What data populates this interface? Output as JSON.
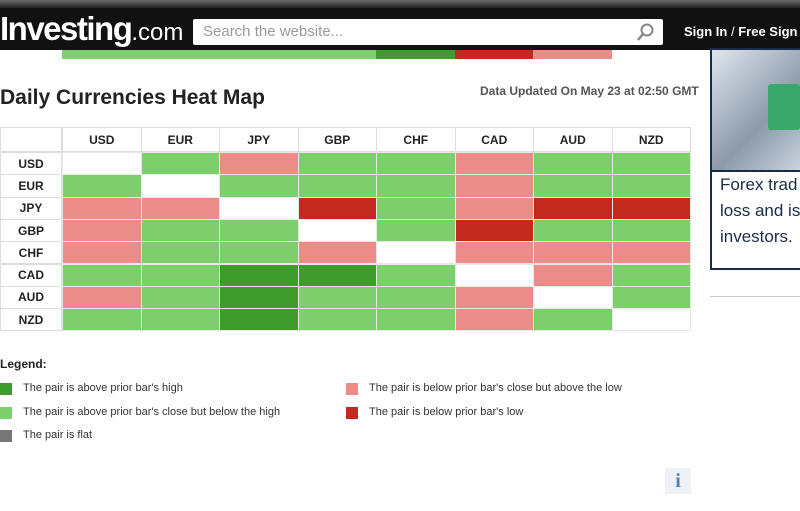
{
  "header": {
    "logo": "Investing",
    "logo_suffix": ".com",
    "search_placeholder": "Search the website...",
    "sign_in": "Sign In",
    "separator": "/",
    "free_sign": "Free Sign"
  },
  "title": "Daily Currencies Heat Map",
  "updated": "Data Updated On May 23 at 02:50 GMT",
  "heatmap": {
    "columns": [
      "USD",
      "EUR",
      "JPY",
      "GBP",
      "CHF",
      "CAD",
      "AUD",
      "NZD"
    ],
    "rows": [
      {
        "label": "USD",
        "cells": [
          null,
          "#7dce6d",
          "#ec8c88",
          "#7dce6d",
          "#7dce6d",
          "#ec8c88",
          "#7dce6d",
          "#7dce6d"
        ]
      },
      {
        "label": "EUR",
        "cells": [
          "#7dce6d",
          null,
          "#7dce6d",
          "#7dce6d",
          "#7dce6d",
          "#ec8c88",
          "#7dce6d",
          "#7dce6d"
        ]
      },
      {
        "label": "JPY",
        "cells": [
          "#ec8c88",
          "#ec8c88",
          null,
          "#c4291f",
          "#7dce6d",
          "#ec8c88",
          "#c4291f",
          "#c4291f"
        ]
      },
      {
        "label": "GBP",
        "cells": [
          "#ec8c88",
          "#7dce6d",
          "#7dce6d",
          null,
          "#7dce6d",
          "#c4291f",
          "#7dce6d",
          "#7dce6d"
        ]
      },
      {
        "label": "CHF",
        "cells": [
          "#ec8c88",
          "#7dce6d",
          "#7dce6d",
          "#ec8c88",
          null,
          "#ec8c88",
          "#ec8c88",
          "#ec8c88"
        ]
      },
      {
        "label": "CAD",
        "cells": [
          "#7dce6d",
          "#7dce6d",
          "#3e9b2c",
          "#3e9b2c",
          "#7dce6d",
          null,
          "#ec8c88",
          "#7dce6d"
        ]
      },
      {
        "label": "AUD",
        "cells": [
          "#ec8c88",
          "#7dce6d",
          "#3e9b2c",
          "#7dce6d",
          "#7dce6d",
          "#ec8c88",
          null,
          "#7dce6d"
        ]
      },
      {
        "label": "NZD",
        "cells": [
          "#7dce6d",
          "#7dce6d",
          "#3e9b2c",
          "#7dce6d",
          "#7dce6d",
          "#ec8c88",
          "#7dce6d",
          null
        ]
      }
    ]
  },
  "legend": {
    "heading": "Legend:",
    "items": [
      {
        "color": "#3e9b2c",
        "text": "The pair is above prior bar's high"
      },
      {
        "color": "#7dce6d",
        "text": "The pair is above prior bar's close but below the high"
      },
      {
        "color": "#777777",
        "text": "The pair is flat"
      },
      {
        "color": "#ec8c88",
        "text": "The pair is below prior bar's close but above the low"
      },
      {
        "color": "#c4291f",
        "text": "The pair is below prior bar's low"
      }
    ]
  },
  "ad": {
    "lines": [
      "Forex trad",
      "loss and is",
      "investors."
    ]
  },
  "info": "i"
}
